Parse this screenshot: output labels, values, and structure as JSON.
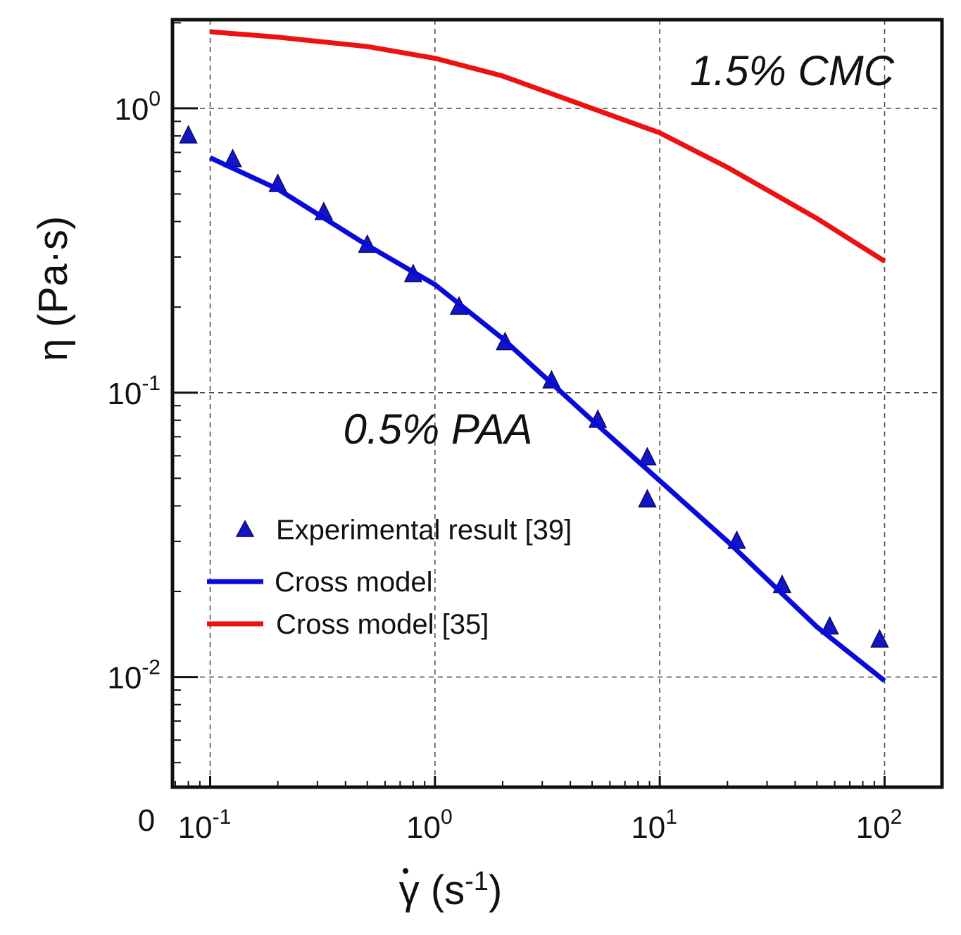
{
  "chart_data": {
    "type": "line",
    "xscale": "log",
    "yscale": "log",
    "xlim": [
      0.068,
      180
    ],
    "ylim": [
      0.0041,
      2.05
    ],
    "grid": true,
    "xlabel": {
      "symbol": "γ",
      "unit_open": " (s",
      "unit_exp": "-1",
      "unit_close": ")"
    },
    "ylabel": "η (Pa·s)",
    "x_ticks": [
      {
        "value": 0.1,
        "base": "10",
        "exp": "-1"
      },
      {
        "value": 1,
        "base": "10",
        "exp": "0"
      },
      {
        "value": 10,
        "base": "10",
        "exp": "1"
      },
      {
        "value": 100,
        "base": "10",
        "exp": "2"
      }
    ],
    "y_ticks": [
      {
        "value": 0.01,
        "base": "10",
        "exp": "-2"
      },
      {
        "value": 0.1,
        "base": "10",
        "exp": "-1"
      },
      {
        "value": 1,
        "base": "10",
        "exp": "0"
      }
    ],
    "origin_label": "0",
    "series": [
      {
        "name": "Experimental result [39]",
        "kind": "scatter",
        "marker": "triangle",
        "color": "#1515c8",
        "points": [
          [
            0.08,
            0.8
          ],
          [
            0.126,
            0.66
          ],
          [
            0.2,
            0.54
          ],
          [
            0.32,
            0.43
          ],
          [
            0.5,
            0.33
          ],
          [
            0.8,
            0.26
          ],
          [
            1.28,
            0.2
          ],
          [
            2.05,
            0.15
          ],
          [
            3.3,
            0.11
          ],
          [
            5.3,
            0.08
          ],
          [
            8.8,
            0.059
          ],
          [
            8.8,
            0.042
          ],
          [
            22,
            0.03
          ],
          [
            35,
            0.021
          ],
          [
            57,
            0.015
          ],
          [
            95,
            0.0135
          ]
        ]
      },
      {
        "name": "Cross model",
        "kind": "line",
        "color": "#0b0bd9",
        "points": [
          [
            0.1,
            0.67
          ],
          [
            0.2,
            0.52
          ],
          [
            0.5,
            0.33
          ],
          [
            1,
            0.24
          ],
          [
            2,
            0.155
          ],
          [
            5,
            0.08
          ],
          [
            10,
            0.049
          ],
          [
            20,
            0.03
          ],
          [
            50,
            0.015
          ],
          [
            100,
            0.0097
          ]
        ]
      },
      {
        "name": "Cross model [35]",
        "kind": "line",
        "color": "#ee1111",
        "points": [
          [
            0.1,
            1.86
          ],
          [
            0.2,
            1.78
          ],
          [
            0.5,
            1.65
          ],
          [
            1,
            1.5
          ],
          [
            2,
            1.3
          ],
          [
            5,
            1.0
          ],
          [
            10,
            0.82
          ],
          [
            20,
            0.62
          ],
          [
            50,
            0.41
          ],
          [
            100,
            0.29
          ]
        ]
      }
    ],
    "annotations": [
      "1.5% CMC",
      "0.5% PAA"
    ],
    "legend_position": "lower-left"
  }
}
